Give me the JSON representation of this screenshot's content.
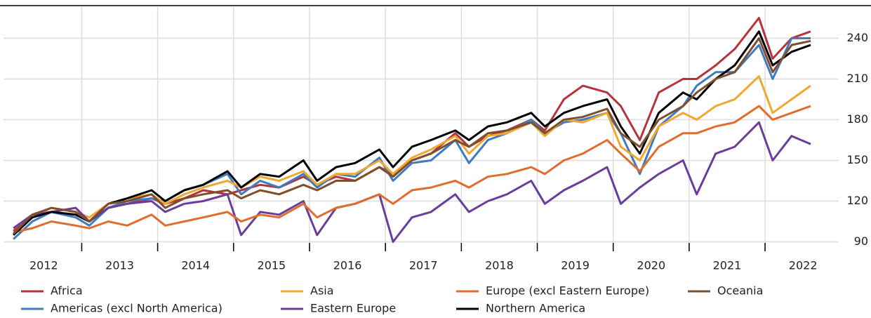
{
  "chart_data": {
    "type": "line",
    "x": [
      2012.1,
      2012.35,
      2012.6,
      2012.92,
      2013.1,
      2013.35,
      2013.6,
      2013.92,
      2014.1,
      2014.35,
      2014.6,
      2014.92,
      2015.1,
      2015.35,
      2015.6,
      2015.92,
      2016.1,
      2016.35,
      2016.6,
      2016.92,
      2017.1,
      2017.35,
      2017.6,
      2017.92,
      2018.1,
      2018.35,
      2018.6,
      2018.92,
      2019.1,
      2019.35,
      2019.6,
      2019.92,
      2020.1,
      2020.35,
      2020.6,
      2020.92,
      2021.1,
      2021.35,
      2021.6,
      2021.92,
      2022.1,
      2022.35,
      2022.6
    ],
    "series": [
      {
        "name": "Africa",
        "color": "#b5333a",
        "values": [
          98,
          108,
          112,
          110,
          105,
          115,
          118,
          122,
          118,
          122,
          128,
          125,
          128,
          132,
          130,
          138,
          132,
          138,
          135,
          145,
          140,
          150,
          155,
          170,
          160,
          168,
          172,
          180,
          172,
          195,
          205,
          200,
          190,
          165,
          200,
          210,
          210,
          220,
          232,
          255,
          225,
          240,
          245
        ]
      },
      {
        "name": "Americas (excl North America)",
        "color": "#3e7cc2",
        "values": [
          92,
          105,
          112,
          108,
          102,
          115,
          120,
          122,
          120,
          128,
          132,
          140,
          125,
          135,
          130,
          140,
          130,
          140,
          138,
          152,
          135,
          148,
          150,
          165,
          148,
          165,
          170,
          180,
          170,
          178,
          180,
          185,
          170,
          140,
          175,
          190,
          205,
          215,
          215,
          235,
          210,
          240,
          240
        ]
      },
      {
        "name": "Asia",
        "color": "#f0a830",
        "values": [
          95,
          108,
          115,
          112,
          108,
          118,
          122,
          125,
          118,
          125,
          130,
          135,
          130,
          138,
          135,
          142,
          132,
          140,
          140,
          150,
          140,
          152,
          158,
          168,
          155,
          168,
          170,
          178,
          168,
          180,
          178,
          185,
          160,
          150,
          175,
          185,
          180,
          190,
          195,
          212,
          185,
          195,
          205
        ]
      },
      {
        "name": "Eastern Europe",
        "color": "#6a3d9a",
        "values": [
          100,
          110,
          112,
          115,
          105,
          115,
          118,
          120,
          112,
          118,
          120,
          125,
          95,
          112,
          110,
          120,
          95,
          115,
          118,
          125,
          90,
          108,
          112,
          125,
          112,
          120,
          125,
          135,
          118,
          128,
          135,
          145,
          118,
          130,
          140,
          150,
          125,
          155,
          160,
          178,
          150,
          168,
          162
        ]
      },
      {
        "name": "Europe (excl Eastern Europe)",
        "color": "#e06c2e",
        "values": [
          97,
          100,
          105,
          102,
          100,
          105,
          102,
          110,
          102,
          105,
          108,
          112,
          105,
          110,
          108,
          118,
          108,
          115,
          118,
          125,
          118,
          128,
          130,
          135,
          130,
          138,
          140,
          145,
          140,
          150,
          155,
          165,
          155,
          142,
          160,
          170,
          170,
          175,
          178,
          190,
          180,
          185,
          190
        ]
      },
      {
        "name": "Northern America",
        "color": "#000000",
        "values": [
          95,
          108,
          112,
          110,
          105,
          118,
          122,
          128,
          120,
          128,
          132,
          142,
          130,
          140,
          138,
          150,
          135,
          145,
          148,
          158,
          145,
          160,
          165,
          172,
          165,
          175,
          178,
          185,
          175,
          185,
          190,
          195,
          175,
          155,
          185,
          200,
          195,
          210,
          220,
          245,
          220,
          230,
          235
        ]
      },
      {
        "name": "Oceania",
        "color": "#7f4f2b",
        "values": [
          96,
          110,
          115,
          112,
          105,
          118,
          120,
          125,
          115,
          122,
          125,
          128,
          122,
          128,
          125,
          132,
          128,
          135,
          135,
          145,
          138,
          150,
          155,
          165,
          160,
          170,
          172,
          178,
          170,
          180,
          182,
          188,
          170,
          160,
          180,
          190,
          200,
          210,
          215,
          240,
          215,
          235,
          238
        ]
      }
    ],
    "xlim": [
      2011.97,
      2022.97
    ],
    "xticks": [
      {
        "value": 2012.5,
        "label": "2012"
      },
      {
        "value": 2013.5,
        "label": "2013"
      },
      {
        "value": 2014.5,
        "label": "2014"
      },
      {
        "value": 2015.5,
        "label": "2015"
      },
      {
        "value": 2016.5,
        "label": "2016"
      },
      {
        "value": 2017.5,
        "label": "2017"
      },
      {
        "value": 2018.5,
        "label": "2018"
      },
      {
        "value": 2019.5,
        "label": "2019"
      },
      {
        "value": 2020.5,
        "label": "2020"
      },
      {
        "value": 2021.5,
        "label": "2021"
      },
      {
        "value": 2022.5,
        "label": "2022"
      }
    ],
    "xgrid": [
      2013,
      2014,
      2015,
      2016,
      2017,
      2018,
      2019,
      2020,
      2021,
      2022
    ],
    "ylim": [
      83,
      263
    ],
    "yticks": [
      90,
      120,
      150,
      180,
      210,
      240
    ],
    "grid": true
  }
}
